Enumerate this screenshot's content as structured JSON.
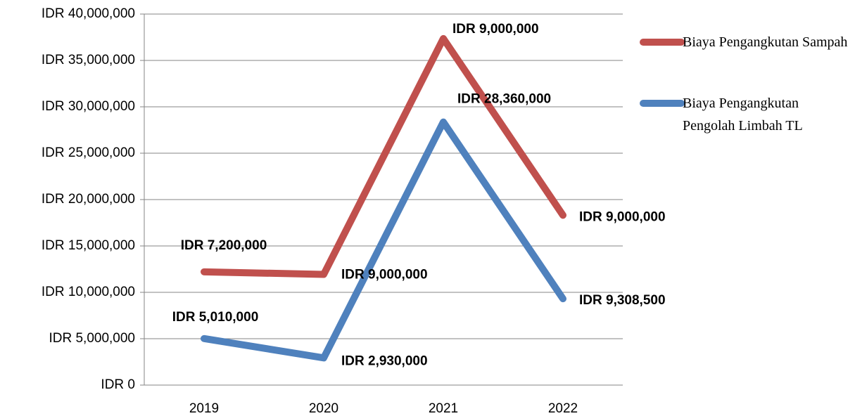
{
  "chart_data": {
    "type": "line",
    "stacked": true,
    "categories": [
      "2019",
      "2020",
      "2021",
      "2022"
    ],
    "series": [
      {
        "name": "Biaya Pengangkutan Pengolah Limbah TL",
        "color": "#4f81bd",
        "values": [
          5010000,
          2930000,
          28360000,
          9308500
        ],
        "value_labels": [
          "IDR 5,010,000",
          "IDR 2,930,000",
          "IDR 28,360,000",
          "IDR 9,308,500"
        ]
      },
      {
        "name": "Biaya Pengangkutan Sampah",
        "color": "#c0504d",
        "values": [
          7200000,
          9000000,
          9000000,
          9000000
        ],
        "value_labels": [
          "IDR 7,200,000",
          "IDR 9,000,000",
          "IDR 9,000,000",
          "IDR 9,000,000"
        ]
      }
    ],
    "ylim": [
      0,
      40000000
    ],
    "yticks": [
      {
        "value": 0,
        "label": "IDR 0"
      },
      {
        "value": 5000000,
        "label": "IDR 5,000,000"
      },
      {
        "value": 10000000,
        "label": "IDR 10,000,000"
      },
      {
        "value": 15000000,
        "label": "IDR 15,000,000"
      },
      {
        "value": 20000000,
        "label": "IDR 20,000,000"
      },
      {
        "value": 25000000,
        "label": "IDR 25,000,000"
      },
      {
        "value": 30000000,
        "label": "IDR 30,000,000"
      },
      {
        "value": 35000000,
        "label": "IDR 35,000,000"
      },
      {
        "value": 40000000,
        "label": "IDR 40,000,000"
      }
    ],
    "grid": true,
    "legend": "right"
  }
}
